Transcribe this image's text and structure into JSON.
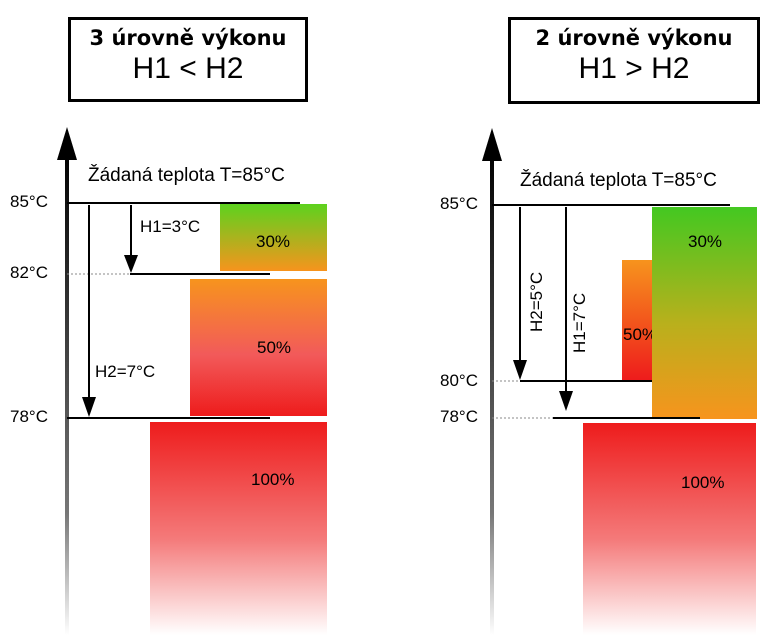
{
  "left": {
    "title_line1": "3 úrovně výkonu",
    "title_line2": "H1 < H2",
    "setpoint": "Žádaná teplota T=85°C",
    "ticks": [
      "85°C",
      "82°C",
      "78°C"
    ],
    "h1": "H1=3°C",
    "h2": "H2=7°C",
    "bars": [
      "30%",
      "50%",
      "100%"
    ]
  },
  "right": {
    "title_line1": "2 úrovně výkonu",
    "title_line2": "H1 > H2",
    "setpoint": "Žádaná teplota T=85°C",
    "ticks": [
      "85°C",
      "80°C",
      "78°C"
    ],
    "h2": "H2=5°C",
    "h1": "H1=7°C",
    "bars": [
      "30%",
      "50%",
      "100%"
    ]
  },
  "colors": {
    "green": "#6fd21f",
    "orange": "#f7931e",
    "red": "#ee1c1c",
    "light_red": "#f6a0a0"
  }
}
